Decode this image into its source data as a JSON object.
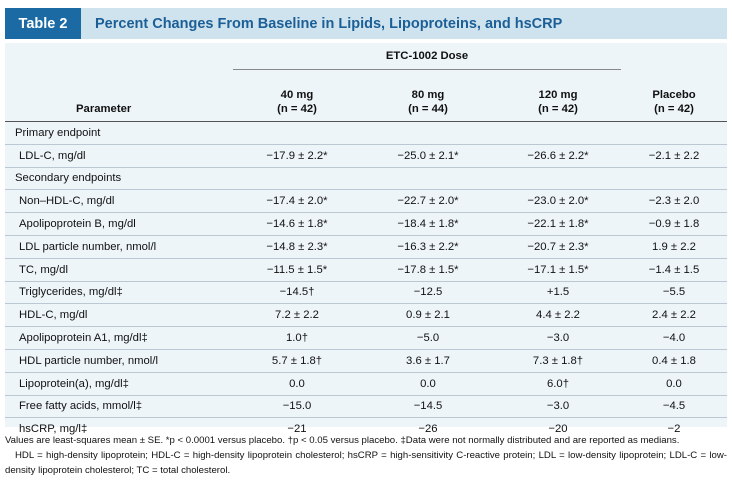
{
  "title": {
    "label": "Table 2",
    "text": "Percent Changes From Baseline in Lipids, Lipoproteins, and hsCRP"
  },
  "table": {
    "group_header": "ETC-1002 Dose",
    "param_header": "Parameter",
    "columns": [
      {
        "line1": "40 mg",
        "line2": "(n = 42)"
      },
      {
        "line1": "80 mg",
        "line2": "(n = 44)"
      },
      {
        "line1": "120 mg",
        "line2": "(n = 42)"
      },
      {
        "line1": "Placebo",
        "line2": "(n = 42)"
      }
    ],
    "sections": [
      {
        "name": "Primary endpoint",
        "rows": [
          {
            "label": "LDL-C, mg/dl",
            "values": [
              "−17.9 ± 2.2*",
              "−25.0 ± 2.1*",
              "−26.6 ± 2.2*",
              "−2.1 ± 2.2"
            ]
          }
        ]
      },
      {
        "name": "Secondary endpoints",
        "rows": [
          {
            "label": "Non–HDL-C, mg/dl",
            "values": [
              "−17.4 ± 2.0*",
              "−22.7 ± 2.0*",
              "−23.0 ± 2.0*",
              "−2.3 ± 2.0"
            ]
          },
          {
            "label": "Apolipoprotein B, mg/dl",
            "values": [
              "−14.6 ± 1.8*",
              "−18.4 ± 1.8*",
              "−22.1 ± 1.8*",
              "−0.9 ± 1.8"
            ]
          },
          {
            "label": "LDL particle number, nmol/l",
            "values": [
              "−14.8 ± 2.3*",
              "−16.3 ± 2.2*",
              "−20.7 ± 2.3*",
              "1.9 ± 2.2"
            ]
          },
          {
            "label": "TC, mg/dl",
            "values": [
              "−11.5 ± 1.5*",
              "−17.8 ± 1.5*",
              "−17.1 ± 1.5*",
              "−1.4 ± 1.5"
            ]
          },
          {
            "label": "Triglycerides, mg/dl‡",
            "values": [
              "−14.5†",
              "−12.5",
              "+1.5",
              "−5.5"
            ]
          },
          {
            "label": "HDL-C, mg/dl",
            "values": [
              "7.2 ± 2.2",
              "0.9 ± 2.1",
              "4.4 ± 2.2",
              "2.4 ± 2.2"
            ]
          },
          {
            "label": "Apolipoprotein A1, mg/dl‡",
            "values": [
              "1.0†",
              "−5.0",
              "−3.0",
              "−4.0"
            ]
          },
          {
            "label": "HDL particle number, nmol/l",
            "values": [
              "5.7 ± 1.8†",
              "3.6 ± 1.7",
              "7.3 ± 1.8†",
              "0.4 ± 1.8"
            ]
          },
          {
            "label": "Lipoprotein(a), mg/dl‡",
            "values": [
              "0.0",
              "0.0",
              "6.0†",
              "0.0"
            ]
          },
          {
            "label": "Free fatty acids, mmol/l‡",
            "values": [
              "−15.0",
              "−14.5",
              "−3.0",
              "−4.5"
            ]
          },
          {
            "label": "hsCRP, mg/l‡",
            "values": [
              "−21",
              "−26",
              "−20",
              "−2"
            ]
          }
        ]
      }
    ]
  },
  "footnotes": {
    "line1": "Values are least-squares mean ± SE. *p < 0.0001 versus placebo. †p < 0.05 versus placebo. ‡Data were not normally distributed and are reported as medians.",
    "line2": "HDL = high-density lipoprotein; HDL-C = high-density lipoprotein cholesterol; hsCRP = high-sensitivity C-reactive protein; LDL = low-density lipoprotein; LDL-C = low-density lipoprotein cholesterol; TC = total cholesterol."
  }
}
